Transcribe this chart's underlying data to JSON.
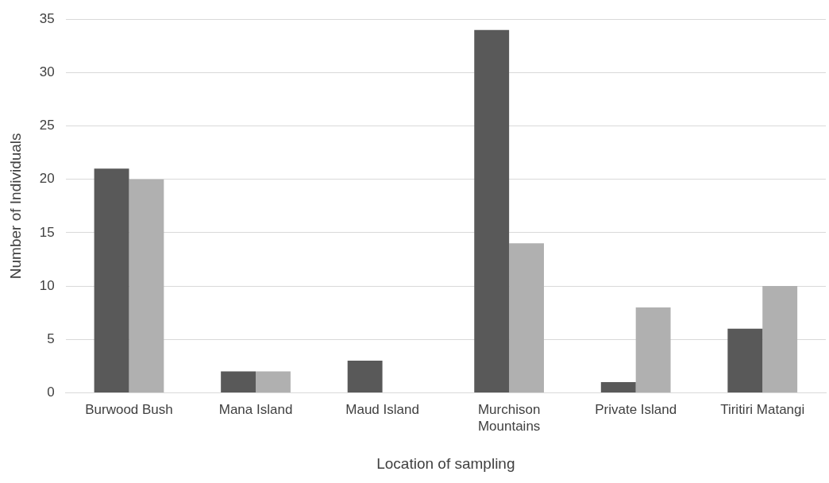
{
  "chart_data": {
    "type": "bar",
    "xlabel": "Location of sampling",
    "ylabel": "Number of Individuals",
    "categories": [
      "Burwood Bush",
      "Mana Island",
      "Maud Island",
      "Murchison Mountains",
      "Private Island",
      "Tiritiri Matangi"
    ],
    "series": [
      {
        "color": "#595959",
        "values": [
          21,
          2,
          3,
          34,
          1,
          6
        ]
      },
      {
        "color": "#b0b0b0",
        "values": [
          20,
          2,
          0,
          14,
          8,
          10
        ]
      }
    ],
    "ylim": [
      0,
      35
    ],
    "yticks": [
      0,
      5,
      10,
      15,
      20,
      25,
      30,
      35
    ],
    "grid": "y",
    "legend": false
  }
}
